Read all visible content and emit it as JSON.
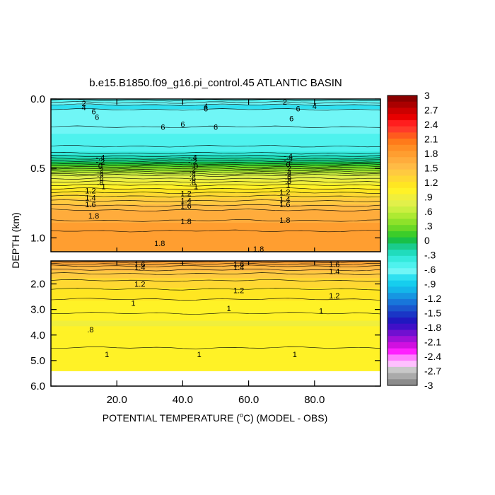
{
  "chart_data": {
    "type": "heatmap",
    "title": "b.e15.B1850.f09_g16.pi_control.45 ATLANTIC BASIN",
    "xlabel_prefix": "POTENTIAL TEMPERATURE (",
    "xlabel_degree": "o",
    "xlabel_suffix": "C) (MODEL - OBS)",
    "ylabel": "DEPTH (km)",
    "x_range": [
      0,
      100
    ],
    "x_ticks": [
      {
        "value": 20,
        "label": "20.0"
      },
      {
        "value": 40,
        "label": "40.0"
      },
      {
        "value": 60,
        "label": "60.0"
      },
      {
        "value": 80,
        "label": "80.0"
      }
    ],
    "upper_panel": {
      "depth_range_km": [
        0,
        1.1
      ],
      "y_ticks": [
        {
          "value": 0.0,
          "label": "0.0"
        },
        {
          "value": 0.5,
          "label": "0.5"
        },
        {
          "value": 1.0,
          "label": "1.0"
        }
      ]
    },
    "lower_panel": {
      "depth_range_km": [
        1.1,
        6.0
      ],
      "y_ticks": [
        {
          "value": 2.0,
          "label": "2.0"
        },
        {
          "value": 3.0,
          "label": "3.0"
        },
        {
          "value": 4.0,
          "label": "4.0"
        },
        {
          "value": 5.0,
          "label": "5.0"
        },
        {
          "value": 6.0,
          "label": "6.0"
        }
      ]
    },
    "colorbar": {
      "min": -3,
      "max": 3,
      "labels": [
        "3",
        "2.7",
        "2.4",
        "2.1",
        "1.8",
        "1.5",
        "1.2",
        ".9",
        ".6",
        ".3",
        "0",
        "-.3",
        "-.6",
        "-.9",
        "-1.2",
        "-1.5",
        "-1.8",
        "-2.1",
        "-2.4",
        "-2.7",
        "-3"
      ],
      "colors": [
        "#8a0000",
        "#aa0000",
        "#cc0000",
        "#e80000",
        "#ff1e1e",
        "#ff3a2a",
        "#ff5a1e",
        "#ff7a1a",
        "#ff8e24",
        "#ff9e30",
        "#ffac3c",
        "#ffbb45",
        "#ffca40",
        "#ffd833",
        "#ffe622",
        "#fff227",
        "#f0ef3c",
        "#e2f04a",
        "#cbef40",
        "#aeea32",
        "#8ee22a",
        "#6ad826",
        "#3ccd2a",
        "#18c048",
        "#1acc8c",
        "#20dcbc",
        "#34eadc",
        "#4ef2ee",
        "#70f6f6",
        "#2ee0f0",
        "#16ceee",
        "#14b6ea",
        "#1696e2",
        "#1876da",
        "#1a56ce",
        "#1a36c6",
        "#2018c0",
        "#4010c8",
        "#7010d0",
        "#a010d8",
        "#d010e0",
        "#ff20ff",
        "#ff80ff",
        "#ffc0ff",
        "#c8c8c8",
        "#aaaaaa",
        "#8c8c8c"
      ]
    },
    "field_profile": [
      {
        "depth": 0.0,
        "value": -0.45
      },
      {
        "depth": 0.05,
        "value": -0.75
      },
      {
        "depth": 0.1,
        "value": -0.65
      },
      {
        "depth": 0.2,
        "value": -0.6
      },
      {
        "depth": 0.3,
        "value": -0.55
      },
      {
        "depth": 0.38,
        "value": -0.45
      },
      {
        "depth": 0.42,
        "value": -0.25
      },
      {
        "depth": 0.46,
        "value": 0.0
      },
      {
        "depth": 0.5,
        "value": 0.3
      },
      {
        "depth": 0.55,
        "value": 0.7
      },
      {
        "depth": 0.62,
        "value": 1.0
      },
      {
        "depth": 0.7,
        "value": 1.3
      },
      {
        "depth": 0.8,
        "value": 1.6
      },
      {
        "depth": 0.95,
        "value": 1.8
      },
      {
        "depth": 1.1,
        "value": 1.85
      },
      {
        "depth": 1.3,
        "value": 1.6
      },
      {
        "depth": 1.6,
        "value": 1.4
      },
      {
        "depth": 2.0,
        "value": 1.25
      },
      {
        "depth": 2.8,
        "value": 1.05
      },
      {
        "depth": 3.5,
        "value": 0.95
      },
      {
        "depth": 4.5,
        "value": 1.0
      },
      {
        "depth": 5.4,
        "value": 1.0
      }
    ],
    "bottom_depth_km": 5.4,
    "contour_labels": [
      {
        "x": 10,
        "depth": 0.03,
        "text": "2"
      },
      {
        "x": 10,
        "depth": 0.06,
        "text": "4"
      },
      {
        "x": 13,
        "depth": 0.09,
        "text": "6"
      },
      {
        "x": 34,
        "depth": 0.2,
        "text": "6"
      },
      {
        "x": 40,
        "depth": 0.18,
        "text": "6"
      },
      {
        "x": 50,
        "depth": 0.2,
        "text": "6"
      },
      {
        "x": 47,
        "depth": 0.05,
        "text": "4"
      },
      {
        "x": 47,
        "depth": 0.07,
        "text": "6"
      },
      {
        "x": 71,
        "depth": 0.02,
        "text": "2"
      },
      {
        "x": 75,
        "depth": 0.07,
        "text": "6"
      },
      {
        "x": 80,
        "depth": 0.05,
        "text": "4"
      },
      {
        "x": 73,
        "depth": 0.14,
        "text": "6"
      },
      {
        "x": 14,
        "depth": 0.13,
        "text": "6"
      },
      {
        "x": 15,
        "depth": 0.42,
        "text": "-.4"
      },
      {
        "x": 15,
        "depth": 0.45,
        "text": "-.2"
      },
      {
        "x": 15,
        "depth": 0.48,
        "text": "0"
      },
      {
        "x": 15,
        "depth": 0.51,
        "text": ".2"
      },
      {
        "x": 15,
        "depth": 0.54,
        "text": ".4"
      },
      {
        "x": 15,
        "depth": 0.57,
        "text": ".6"
      },
      {
        "x": 15,
        "depth": 0.6,
        "text": ".8"
      },
      {
        "x": 16,
        "depth": 0.63,
        "text": "1"
      },
      {
        "x": 12,
        "depth": 0.66,
        "text": "1.2"
      },
      {
        "x": 12,
        "depth": 0.71,
        "text": "1.4"
      },
      {
        "x": 12,
        "depth": 0.76,
        "text": "1.6"
      },
      {
        "x": 13,
        "depth": 0.84,
        "text": "1.8"
      },
      {
        "x": 43,
        "depth": 0.42,
        "text": "-.4"
      },
      {
        "x": 43,
        "depth": 0.45,
        "text": "-.2"
      },
      {
        "x": 44,
        "depth": 0.48,
        "text": "0"
      },
      {
        "x": 43,
        "depth": 0.51,
        "text": ".2"
      },
      {
        "x": 43,
        "depth": 0.54,
        "text": ".4"
      },
      {
        "x": 43,
        "depth": 0.57,
        "text": ".6"
      },
      {
        "x": 43,
        "depth": 0.6,
        "text": ".8"
      },
      {
        "x": 44,
        "depth": 0.63,
        "text": "1"
      },
      {
        "x": 41,
        "depth": 0.68,
        "text": "1.2"
      },
      {
        "x": 41,
        "depth": 0.73,
        "text": "1.4"
      },
      {
        "x": 41,
        "depth": 0.77,
        "text": "1.6"
      },
      {
        "x": 41,
        "depth": 0.88,
        "text": "1.8"
      },
      {
        "x": 72,
        "depth": 0.41,
        "text": "-.4"
      },
      {
        "x": 72,
        "depth": 0.44,
        "text": "-.2"
      },
      {
        "x": 72,
        "depth": 0.47,
        "text": "0"
      },
      {
        "x": 72,
        "depth": 0.5,
        "text": ".2"
      },
      {
        "x": 72,
        "depth": 0.53,
        "text": ".4"
      },
      {
        "x": 72,
        "depth": 0.56,
        "text": ".6"
      },
      {
        "x": 72,
        "depth": 0.59,
        "text": ".8"
      },
      {
        "x": 72,
        "depth": 0.62,
        "text": "1"
      },
      {
        "x": 71,
        "depth": 0.67,
        "text": "1.2"
      },
      {
        "x": 71,
        "depth": 0.72,
        "text": "1.4"
      },
      {
        "x": 71,
        "depth": 0.76,
        "text": "1.6"
      },
      {
        "x": 71,
        "depth": 0.87,
        "text": "1.8"
      },
      {
        "x": 33,
        "depth": 1.04,
        "text": "1.8"
      },
      {
        "x": 63,
        "depth": 1.08,
        "text": "1.8"
      },
      {
        "x": 27,
        "depth": 1.22,
        "text": "1.6"
      },
      {
        "x": 27,
        "depth": 1.35,
        "text": "1.4"
      },
      {
        "x": 57,
        "depth": 1.22,
        "text": "1.6"
      },
      {
        "x": 57,
        "depth": 1.35,
        "text": "1.4"
      },
      {
        "x": 86,
        "depth": 1.22,
        "text": "1.6"
      },
      {
        "x": 86,
        "depth": 1.5,
        "text": "1.4"
      },
      {
        "x": 27,
        "depth": 2.0,
        "text": "1.2"
      },
      {
        "x": 57,
        "depth": 2.25,
        "text": "1.2"
      },
      {
        "x": 86,
        "depth": 2.45,
        "text": "1.2"
      },
      {
        "x": 25,
        "depth": 2.75,
        "text": "1"
      },
      {
        "x": 54,
        "depth": 2.95,
        "text": "1"
      },
      {
        "x": 82,
        "depth": 3.05,
        "text": "1"
      },
      {
        "x": 12,
        "depth": 3.78,
        "text": ".8"
      },
      {
        "x": 17,
        "depth": 4.75,
        "text": "1"
      },
      {
        "x": 45,
        "depth": 4.75,
        "text": "1"
      },
      {
        "x": 74,
        "depth": 4.75,
        "text": "1"
      }
    ]
  }
}
